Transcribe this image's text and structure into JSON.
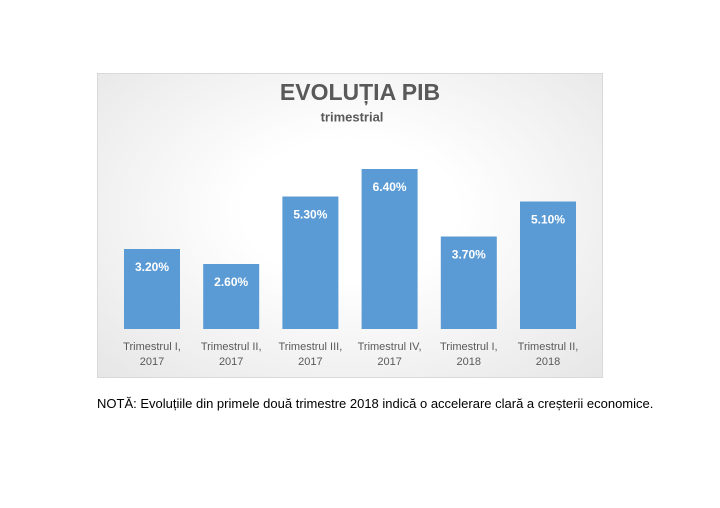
{
  "chart_data": {
    "type": "bar",
    "title": "EVOLUȚIA PIB",
    "subtitle": "trimestrial",
    "categories": [
      "Trimestrul I, 2017",
      "Trimestrul II, 2017",
      "Trimestrul III, 2017",
      "Trimestrul IV, 2017",
      "Trimestrul I, 2018",
      "Trimestrul II, 2018"
    ],
    "values": [
      3.2,
      2.6,
      5.3,
      6.4,
      3.7,
      5.1
    ],
    "value_labels": [
      "3.20%",
      "2.60%",
      "5.30%",
      "6.40%",
      "3.70%",
      "5.10%"
    ],
    "color": "#5b9bd5"
  },
  "note": "NOTĂ: Evoluțiile din primele două trimestre 2018 indică o accelerare clară a creșterii economice."
}
